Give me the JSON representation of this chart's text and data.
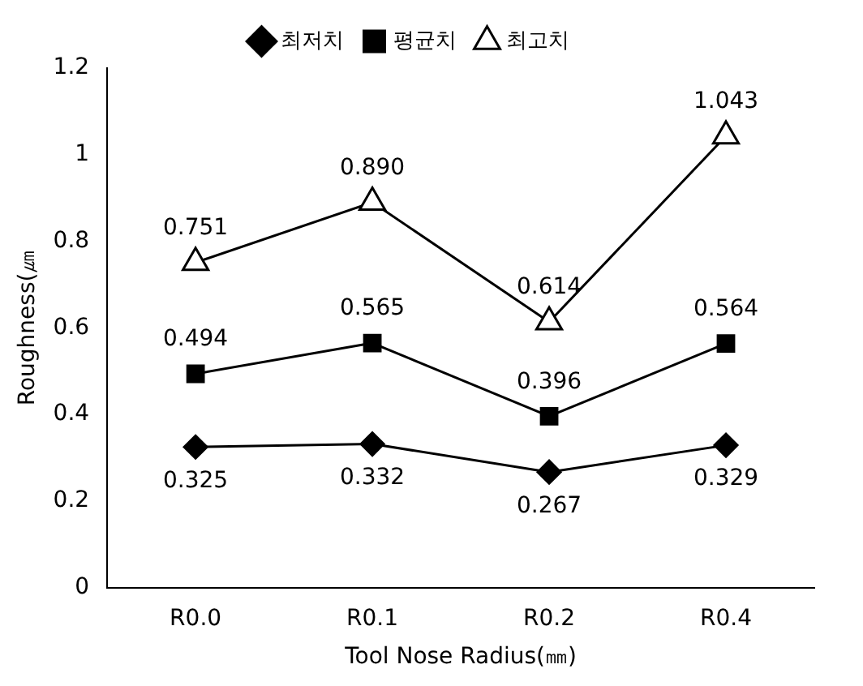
{
  "chart_data": {
    "type": "line",
    "xlabel": "Tool Nose Radius(㎜)",
    "ylabel": "Roughness(㎛",
    "categories": [
      "R0.0",
      "R0.1",
      "R0.2",
      "R0.4"
    ],
    "ylim": [
      0,
      1.2
    ],
    "yticks": [
      0,
      0.2,
      0.4,
      0.6,
      0.8,
      {
        "value": 1,
        "label": "1"
      },
      1.2
    ],
    "grid": false,
    "legend": "top",
    "line_style": "solid",
    "series": [
      {
        "name": "최저치",
        "color": "#000000",
        "marker": "diamond",
        "values": [
          0.325,
          0.332,
          0.267,
          0.329
        ],
        "value_labels": [
          "0.325",
          "0.332",
          "0.267",
          "0.329"
        ]
      },
      {
        "name": "평균치",
        "color": "#000000",
        "marker": "square",
        "values": [
          0.494,
          0.565,
          0.396,
          0.564
        ],
        "value_labels": [
          "0.494",
          "0.565",
          "0.396",
          "0.564"
        ]
      },
      {
        "name": "최고치",
        "color": "#000000",
        "marker": "triangle",
        "values": [
          0.751,
          0.89,
          0.614,
          1.043
        ],
        "value_labels": [
          "0.751",
          "0.890",
          "0.614",
          "1.043"
        ]
      }
    ]
  }
}
